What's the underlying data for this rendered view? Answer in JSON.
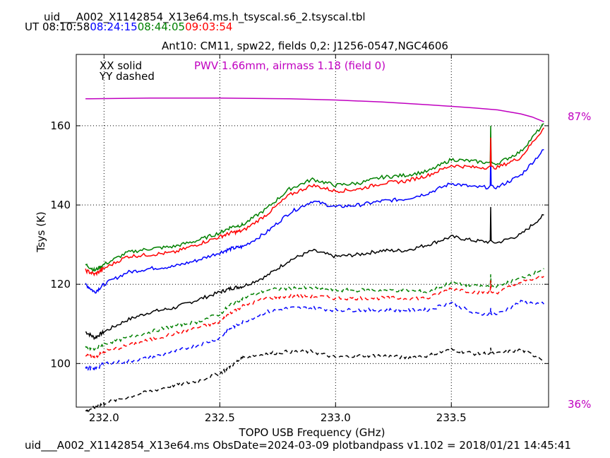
{
  "header": {
    "filename": "uid___A002_X1142854_X13e64.ms.h_tsyscal.s6_2.tsyscal.tbl",
    "ut_label": "UT",
    "ut_times": [
      {
        "time": "08:10:58",
        "color": "#000000"
      },
      {
        "time": "08:24:15",
        "color": "#0000ff"
      },
      {
        "time": "08:44:05",
        "color": "#008000"
      },
      {
        "time": "09:03:54",
        "color": "#ff0000"
      }
    ]
  },
  "footer": {
    "text": "uid___A002_X1142854_X13e64.ms  ObsDate=2024-03-09   plotbandpass v1.102 = 2018/01/21 14:45:41"
  },
  "chart_data": {
    "type": "line",
    "title": "Ant10: CM11,  spw22,  fields 0,2: J1256-0547,NGC4606",
    "xlabel": "TOPO USB Frequency (GHz)",
    "ylabel": "Tsys (K)",
    "xlim": [
      231.88,
      233.92
    ],
    "ylim": [
      89,
      178
    ],
    "x_ticks": [
      "232.0",
      "232.5",
      "233.0",
      "233.5"
    ],
    "x_tick_values": [
      232.0,
      232.5,
      233.0,
      233.5
    ],
    "y_ticks": [
      "100",
      "120",
      "140",
      "160"
    ],
    "y_tick_values": [
      100,
      120,
      140,
      160
    ],
    "grid": true,
    "legend": [
      "XX solid",
      "YY dashed"
    ],
    "annotation": {
      "text": "PWV 1.66mm, airmass 1.18 (field 0)",
      "color": "#c000c0"
    },
    "right_axis": {
      "top_label": "87%",
      "bottom_label": "36%",
      "color": "#c000c0"
    },
    "colors": {
      "time1": "#000000",
      "time2": "#0000ff",
      "time3": "#008000",
      "time4": "#ff0000",
      "transmission": "#c000c0"
    },
    "x": [
      231.92,
      231.96,
      232.0,
      232.1,
      232.2,
      232.3,
      232.4,
      232.5,
      232.55,
      232.6,
      232.7,
      232.8,
      232.9,
      233.0,
      233.1,
      233.2,
      233.3,
      233.4,
      233.5,
      233.6,
      233.7,
      233.8,
      233.9
    ],
    "series": [
      {
        "pol": "XX",
        "time": "08:10:58",
        "color": "#000000",
        "style": "solid",
        "spike": {
          "x": 233.67,
          "y": 139.5
        },
        "values": [
          108,
          106.5,
          108,
          111,
          113,
          114,
          116,
          118,
          119,
          119.5,
          122,
          126,
          128.5,
          127,
          127.5,
          128.5,
          128.5,
          130,
          132,
          131,
          130.5,
          132.5,
          137.5
        ]
      },
      {
        "pol": "XX",
        "time": "08:24:15",
        "color": "#0000ff",
        "style": "solid",
        "spike": {
          "x": 233.67,
          "y": 153
        },
        "values": [
          120,
          118,
          120,
          123,
          124,
          124.5,
          126,
          128,
          129,
          129.5,
          133,
          138,
          141,
          139.5,
          140,
          141,
          141.5,
          143,
          145.5,
          144.5,
          144.5,
          147.5,
          154
        ]
      },
      {
        "pol": "XX",
        "time": "08:44:05",
        "color": "#008000",
        "style": "solid",
        "spike": {
          "x": 233.67,
          "y": 160
        },
        "values": [
          125,
          123.5,
          125,
          128,
          129,
          129.5,
          131,
          133,
          134.5,
          135,
          139,
          144,
          146.5,
          145,
          145.5,
          147,
          147.5,
          148.5,
          151.5,
          151,
          150.5,
          153.5,
          160.5
        ]
      },
      {
        "pol": "XX",
        "time": "09:03:54",
        "color": "#ff0000",
        "style": "solid",
        "spike": {
          "x": 233.67,
          "y": 157
        },
        "values": [
          123.5,
          122.5,
          124,
          127,
          127.5,
          128,
          130,
          132,
          133,
          133.5,
          137.5,
          142.5,
          145,
          143.5,
          144,
          145.5,
          146,
          147.5,
          150,
          149.5,
          149.5,
          152,
          159.5
        ]
      },
      {
        "pol": "YY",
        "time": "08:10:58",
        "color": "#000000",
        "style": "dashed",
        "spike": {
          "x": 233.67,
          "y": 104
        },
        "values": [
          88,
          89,
          90,
          91.5,
          93,
          94.5,
          95.5,
          97.5,
          99.5,
          101.5,
          102.5,
          103,
          103,
          101.5,
          102,
          102,
          101.5,
          102,
          103.5,
          102.5,
          102.5,
          103.5,
          101
        ]
      },
      {
        "pol": "YY",
        "time": "08:24:15",
        "color": "#0000ff",
        "style": "dashed",
        "spike": {
          "x": 233.67,
          "y": 114
        },
        "values": [
          99,
          98.5,
          100,
          100.5,
          101.5,
          103,
          104.5,
          106.5,
          109,
          110.5,
          113,
          114,
          114,
          113.5,
          113.5,
          113.5,
          113.5,
          113.5,
          115.5,
          112.5,
          112.5,
          115.5,
          115
        ]
      },
      {
        "pol": "YY",
        "time": "08:44:05",
        "color": "#008000",
        "style": "dashed",
        "spike": {
          "x": 233.67,
          "y": 122.5
        },
        "values": [
          104,
          103.5,
          105,
          106.5,
          108,
          109.5,
          110.5,
          112.5,
          115,
          116.5,
          118.5,
          119,
          119,
          118.5,
          118.5,
          118.5,
          118.5,
          118,
          120.5,
          119.5,
          119.5,
          121.5,
          124
        ]
      },
      {
        "pol": "YY",
        "time": "09:03:54",
        "color": "#ff0000",
        "style": "dashed",
        "spike": {
          "x": 233.67,
          "y": 121
        },
        "values": [
          102,
          101.5,
          103,
          104.5,
          106,
          107.5,
          109,
          110.5,
          113,
          114.5,
          116.5,
          117,
          117,
          116.5,
          116.5,
          116.5,
          116.5,
          116.5,
          119,
          118,
          118,
          120.5,
          122
        ]
      }
    ],
    "transmission_curve": {
      "color": "#c000c0",
      "x": [
        231.92,
        232.2,
        232.5,
        232.8,
        233.0,
        233.2,
        233.4,
        233.6,
        233.7,
        233.8,
        233.85,
        233.9
      ],
      "y": [
        166.8,
        167.0,
        167.0,
        166.8,
        166.5,
        166.0,
        165.3,
        164.5,
        164.0,
        163.0,
        162.2,
        161.0
      ]
    }
  }
}
